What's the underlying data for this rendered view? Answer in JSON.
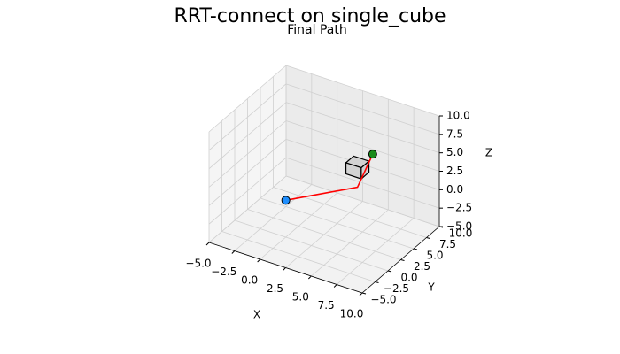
{
  "chart_data": {
    "type": "line3d",
    "title": "RRT-connect on single_cube",
    "subtitle": "Final Path",
    "xlabel": "X",
    "ylabel": "Y",
    "zlabel": "Z",
    "xlim": [
      -5,
      10
    ],
    "ylim": [
      -5,
      10
    ],
    "zlim": [
      -5,
      10
    ],
    "xticks": [
      {
        "value": -5,
        "label": "−5.0"
      },
      {
        "value": -2.5,
        "label": "−2.5"
      },
      {
        "value": 0,
        "label": "0.0"
      },
      {
        "value": 2.5,
        "label": "2.5"
      },
      {
        "value": 5,
        "label": "5.0"
      },
      {
        "value": 7.5,
        "label": "7.5"
      },
      {
        "value": 10,
        "label": "10.0"
      }
    ],
    "yticks": [
      {
        "value": -5,
        "label": "−5.0"
      },
      {
        "value": -2.5,
        "label": "−2.5"
      },
      {
        "value": 0,
        "label": "0.0"
      },
      {
        "value": 2.5,
        "label": "2.5"
      },
      {
        "value": 5,
        "label": "5.0"
      },
      {
        "value": 7.5,
        "label": "7.5"
      },
      {
        "value": 10,
        "label": "10.0"
      }
    ],
    "zticks": [
      {
        "value": -5,
        "label": "−5.0"
      },
      {
        "value": -2.5,
        "label": "−2.5"
      },
      {
        "value": 0,
        "label": "0.0"
      },
      {
        "value": 2.5,
        "label": "2.5"
      },
      {
        "value": 5,
        "label": "5.0"
      },
      {
        "value": 7.5,
        "label": "7.5"
      },
      {
        "value": 10,
        "label": "10.0"
      }
    ],
    "grid": true,
    "path": {
      "color": "#ff0000",
      "x": [
        0,
        4,
        6
      ],
      "y": [
        0,
        6,
        5
      ],
      "z": [
        0,
        0,
        6
      ]
    },
    "start_color": "#1f8fff",
    "goal_color": "#1a8a1a",
    "obstacle": {
      "center": [
        4.5,
        5,
        3.5
      ],
      "size": 1.5,
      "color": "#d3d3d3"
    }
  }
}
